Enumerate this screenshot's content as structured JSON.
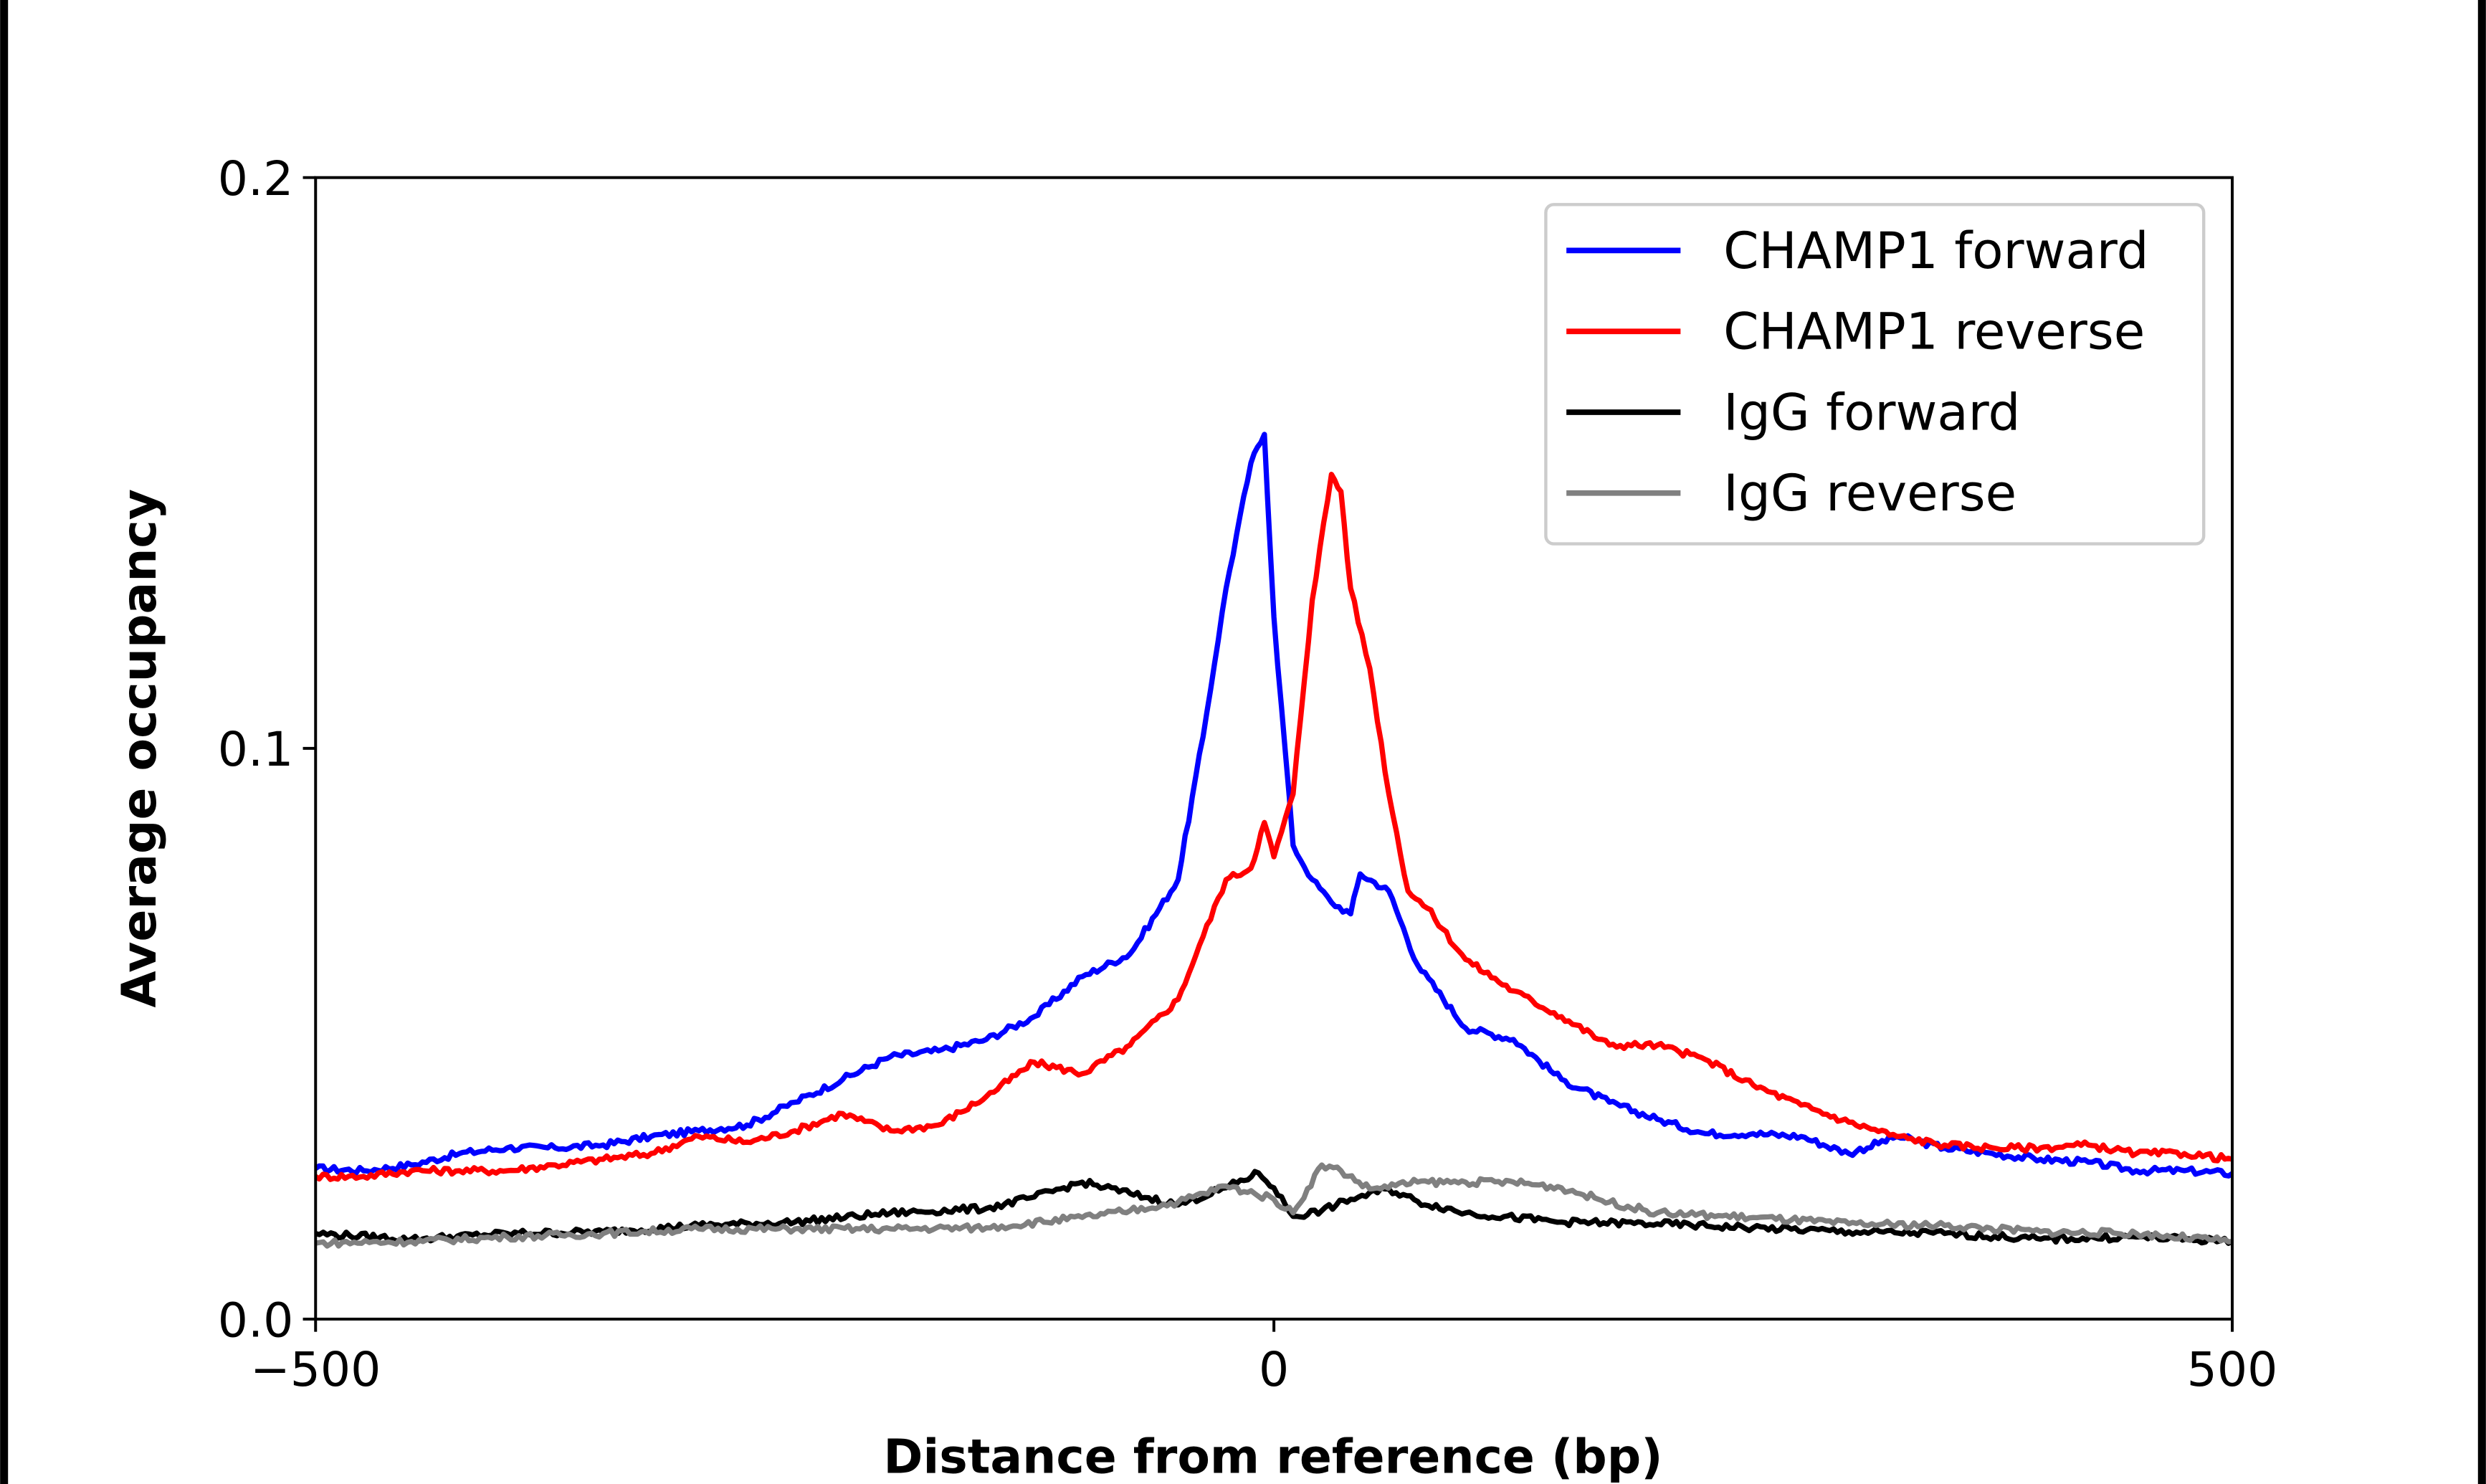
{
  "chart_data": {
    "type": "line",
    "title": "",
    "xlabel": "Distance from reference (bp)",
    "ylabel": "Average occupancy",
    "xlim": [
      -500,
      500
    ],
    "ylim": [
      0.0,
      0.2
    ],
    "xticks": [
      "−500",
      "0",
      "500"
    ],
    "xtick_values": [
      -500,
      0,
      500
    ],
    "yticks": [
      "0.0",
      "0.1",
      "0.2"
    ],
    "ytick_values": [
      0.0,
      0.1,
      0.2
    ],
    "grid": false,
    "legend_position": "top-right",
    "series": [
      {
        "name": "CHAMP1 forward",
        "color": "#0000ff",
        "x": [
          -500,
          -475,
          -450,
          -425,
          -400,
          -375,
          -350,
          -325,
          -300,
          -275,
          -250,
          -225,
          -200,
          -175,
          -150,
          -125,
          -100,
          -75,
          -50,
          -37,
          -25,
          -12,
          -5,
          0,
          10,
          20,
          30,
          40,
          45,
          60,
          75,
          100,
          125,
          150,
          175,
          200,
          225,
          250,
          275,
          300,
          325,
          350,
          375,
          400,
          425,
          450,
          475,
          500
        ],
        "y": [
          0.0264,
          0.026,
          0.027,
          0.029,
          0.03,
          0.03,
          0.0305,
          0.032,
          0.033,
          0.034,
          0.038,
          0.042,
          0.046,
          0.047,
          0.049,
          0.053,
          0.06,
          0.064,
          0.077,
          0.102,
          0.128,
          0.15,
          0.155,
          0.123,
          0.083,
          0.077,
          0.073,
          0.071,
          0.078,
          0.075,
          0.062,
          0.051,
          0.049,
          0.042,
          0.038,
          0.035,
          0.0325,
          0.0325,
          0.032,
          0.029,
          0.032,
          0.03,
          0.029,
          0.028,
          0.0275,
          0.026,
          0.026,
          0.0255
        ]
      },
      {
        "name": "CHAMP1 reverse",
        "color": "#ff0000",
        "x": [
          -500,
          -475,
          -450,
          -425,
          -400,
          -375,
          -350,
          -325,
          -300,
          -275,
          -250,
          -225,
          -200,
          -175,
          -150,
          -125,
          -100,
          -75,
          -50,
          -37,
          -25,
          -12,
          -5,
          0,
          10,
          20,
          30,
          35,
          40,
          50,
          60,
          70,
          80,
          100,
          125,
          150,
          175,
          200,
          225,
          250,
          275,
          300,
          325,
          350,
          375,
          400,
          425,
          450,
          475,
          500
        ],
        "y": [
          0.025,
          0.025,
          0.026,
          0.026,
          0.026,
          0.027,
          0.028,
          0.029,
          0.032,
          0.031,
          0.033,
          0.036,
          0.033,
          0.034,
          0.039,
          0.045,
          0.043,
          0.048,
          0.056,
          0.067,
          0.077,
          0.079,
          0.087,
          0.081,
          0.092,
          0.126,
          0.148,
          0.145,
          0.128,
          0.114,
          0.092,
          0.075,
          0.072,
          0.063,
          0.0575,
          0.053,
          0.048,
          0.048,
          0.0455,
          0.041,
          0.0375,
          0.0345,
          0.032,
          0.0305,
          0.03,
          0.03,
          0.0305,
          0.029,
          0.029,
          0.028
        ]
      },
      {
        "name": "IgG forward",
        "color": "#000000",
        "x": [
          -500,
          -450,
          -400,
          -350,
          -300,
          -250,
          -200,
          -150,
          -125,
          -100,
          -75,
          -50,
          -25,
          -8,
          0,
          10,
          25,
          40,
          60,
          75,
          100,
          150,
          200,
          250,
          300,
          350,
          400,
          450,
          500
        ],
        "y": [
          0.015,
          0.014,
          0.015,
          0.0153,
          0.0164,
          0.017,
          0.0186,
          0.0194,
          0.0214,
          0.024,
          0.022,
          0.02,
          0.023,
          0.0256,
          0.023,
          0.018,
          0.019,
          0.021,
          0.0228,
          0.0206,
          0.0186,
          0.017,
          0.0167,
          0.016,
          0.0153,
          0.015,
          0.014,
          0.0144,
          0.0136
        ]
      },
      {
        "name": "IgG reverse",
        "color": "#808080",
        "x": [
          -500,
          -450,
          -400,
          -350,
          -300,
          -250,
          -200,
          -150,
          -100,
          -75,
          -50,
          -25,
          -10,
          0,
          10,
          25,
          35,
          50,
          75,
          100,
          125,
          150,
          175,
          200,
          250,
          300,
          350,
          400,
          450,
          500
        ],
        "y": [
          0.0133,
          0.0136,
          0.0144,
          0.015,
          0.0158,
          0.0158,
          0.0158,
          0.016,
          0.0178,
          0.019,
          0.0205,
          0.0233,
          0.022,
          0.021,
          0.0186,
          0.027,
          0.026,
          0.0228,
          0.024,
          0.024,
          0.024,
          0.023,
          0.0205,
          0.0186,
          0.0178,
          0.0167,
          0.0164,
          0.0153,
          0.015,
          0.0136
        ]
      }
    ]
  }
}
